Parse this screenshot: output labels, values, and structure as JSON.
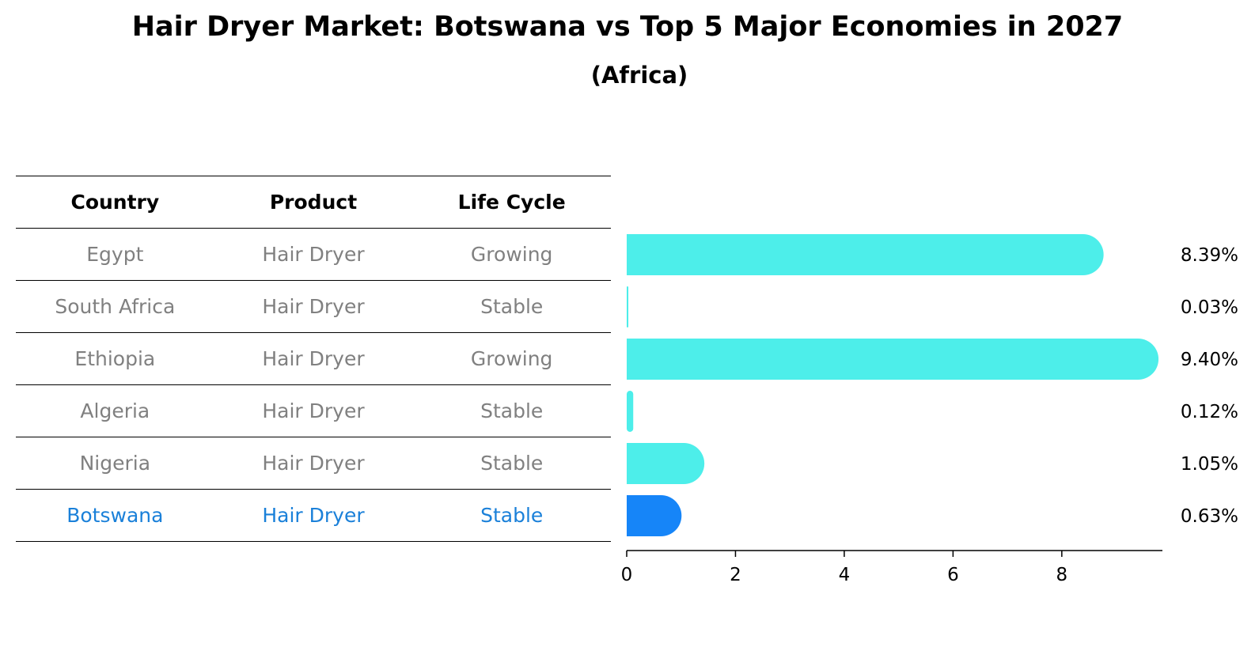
{
  "title": "Hair Dryer Market: Botswana vs Top 5 Major Economies in 2027",
  "subtitle": "(Africa)",
  "table": {
    "headers": [
      "Country",
      "Product",
      "Life Cycle"
    ],
    "rows": [
      {
        "country": "Egypt",
        "product": "Hair Dryer",
        "life_cycle": "Growing"
      },
      {
        "country": "South Africa",
        "product": "Hair Dryer",
        "life_cycle": "Stable"
      },
      {
        "country": "Ethiopia",
        "product": "Hair Dryer",
        "life_cycle": "Growing"
      },
      {
        "country": "Algeria",
        "product": "Hair Dryer",
        "life_cycle": "Stable"
      },
      {
        "country": "Nigeria",
        "product": "Hair Dryer",
        "life_cycle": "Stable"
      },
      {
        "country": "Botswana",
        "product": "Hair Dryer",
        "life_cycle": "Stable"
      }
    ],
    "highlight_color": "#1a80d9",
    "text_color": "#808080"
  },
  "chart_data": {
    "type": "bar",
    "orientation": "horizontal",
    "categories": [
      "Egypt",
      "South Africa",
      "Ethiopia",
      "Algeria",
      "Nigeria",
      "Botswana"
    ],
    "values": [
      8.39,
      0.03,
      9.4,
      0.12,
      1.05,
      0.63
    ],
    "value_labels": [
      "8.39%",
      "0.03%",
      "9.40%",
      "0.12%",
      "1.05%",
      "0.63%"
    ],
    "highlight": "Botswana",
    "colors": {
      "default": "#4deeea",
      "highlight": "#1685f8"
    },
    "xlim": [
      0,
      9.85
    ],
    "xticks": [
      0,
      2,
      4,
      6,
      8
    ],
    "xlabel": "",
    "ylabel": "",
    "grid": false
  }
}
